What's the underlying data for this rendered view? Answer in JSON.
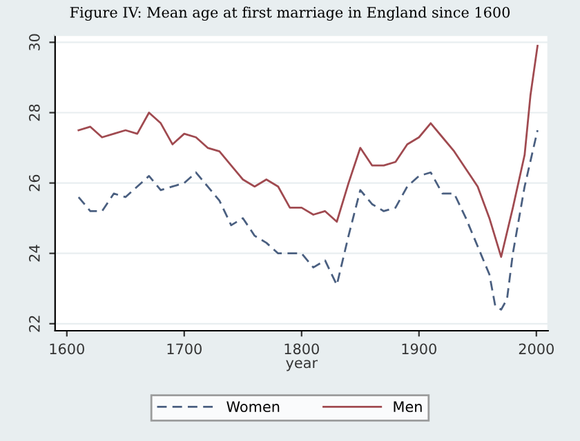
{
  "chart_data": {
    "type": "line",
    "title": "Figure IV: Mean age at first marriage in England since 1600",
    "xlabel": "year",
    "xlim": [
      1590,
      2010
    ],
    "xticks": [
      1600,
      1700,
      1800,
      1900,
      2000
    ],
    "ylim": [
      21.8,
      30.2
    ],
    "yticks": [
      22,
      24,
      26,
      28,
      30
    ],
    "grid": "y",
    "legend": "bottom",
    "series": [
      {
        "name": "Women",
        "color": "#4a5f80",
        "line_style": "dashed",
        "x": [
          1610,
          1620,
          1630,
          1640,
          1650,
          1660,
          1670,
          1680,
          1690,
          1700,
          1710,
          1720,
          1730,
          1740,
          1750,
          1760,
          1770,
          1780,
          1790,
          1800,
          1810,
          1820,
          1830,
          1840,
          1850,
          1860,
          1870,
          1880,
          1890,
          1900,
          1910,
          1920,
          1930,
          1940,
          1950,
          1960,
          1965,
          1970,
          1975,
          1980,
          1990,
          2001
        ],
        "values": [
          25.6,
          25.2,
          25.2,
          25.7,
          25.6,
          25.9,
          26.2,
          25.8,
          25.9,
          26.0,
          26.3,
          25.9,
          25.5,
          24.8,
          25.0,
          24.5,
          24.3,
          24.0,
          24.0,
          24.0,
          23.6,
          23.8,
          23.1,
          24.5,
          25.8,
          25.4,
          25.2,
          25.3,
          25.9,
          26.2,
          26.3,
          25.7,
          25.7,
          25.0,
          24.2,
          23.4,
          22.5,
          22.4,
          22.7,
          24.0,
          25.9,
          27.5
        ]
      },
      {
        "name": "Men",
        "color": "#a04a50",
        "line_style": "solid",
        "x": [
          1610,
          1620,
          1630,
          1640,
          1650,
          1660,
          1670,
          1680,
          1690,
          1700,
          1710,
          1720,
          1730,
          1740,
          1750,
          1760,
          1770,
          1780,
          1790,
          1800,
          1810,
          1820,
          1830,
          1840,
          1850,
          1860,
          1870,
          1880,
          1890,
          1900,
          1910,
          1920,
          1930,
          1940,
          1950,
          1960,
          1970,
          1980,
          1990,
          1995,
          2001
        ],
        "values": [
          27.5,
          27.6,
          27.3,
          27.4,
          27.5,
          27.4,
          28.0,
          27.7,
          27.1,
          27.4,
          27.3,
          27.0,
          26.9,
          26.5,
          26.1,
          25.9,
          26.1,
          25.9,
          25.3,
          25.3,
          25.1,
          25.2,
          24.9,
          26.0,
          27.0,
          26.5,
          26.5,
          26.6,
          27.1,
          27.3,
          27.7,
          27.3,
          26.9,
          26.4,
          25.9,
          25.0,
          23.9,
          25.3,
          26.8,
          28.5,
          29.9
        ]
      }
    ]
  }
}
